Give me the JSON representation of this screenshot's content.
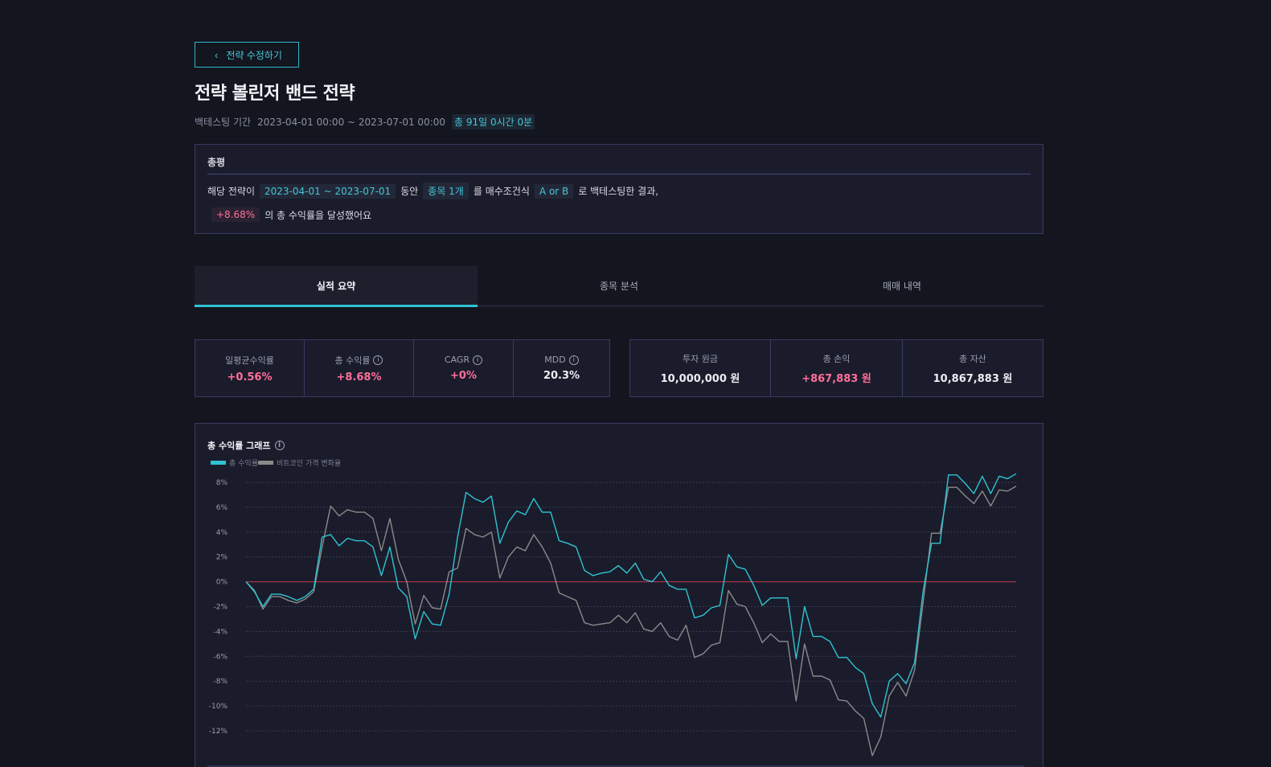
{
  "back_button": {
    "label": "전략 수정하기"
  },
  "title": "전략 볼린저 밴드 전략",
  "period": {
    "label": "백테스팅 기간",
    "range": "2023-04-01 00:00 ~ 2023-07-01 00:00",
    "total": "총 91일 0시간 0분"
  },
  "summary": {
    "heading": "총평",
    "t1": "해당 전략이",
    "range": "2023-04-01 ~ 2023-07-01",
    "t2": "동안",
    "count": "종목 1개",
    "t3": "를 매수조건식",
    "condition": "A or B",
    "t4": "로 백테스팅한 결과,",
    "return": "+8.68%",
    "t5": "의 총 수익률을 달성했어요"
  },
  "tabs": [
    {
      "label": "실적 요약",
      "active": true
    },
    {
      "label": "종목 분석",
      "active": false
    },
    {
      "label": "매매 내역",
      "active": false
    }
  ],
  "stats_left": [
    {
      "label": "일평균수익률",
      "value": "+0.56%",
      "color": "pink",
      "info": false
    },
    {
      "label": "총 수익률",
      "value": "+8.68%",
      "color": "pink",
      "info": true
    },
    {
      "label": "CAGR",
      "value": "+0%",
      "color": "pink",
      "info": true
    },
    {
      "label": "MDD",
      "value": "20.3%",
      "color": "white",
      "info": true
    }
  ],
  "stats_right": [
    {
      "label": "투자 원금",
      "value": "10,000,000 원",
      "color": "white"
    },
    {
      "label": "총 손익",
      "value": "+867,883 원",
      "color": "pink"
    },
    {
      "label": "총 자산",
      "value": "10,867,883 원",
      "color": "white"
    }
  ],
  "chart": {
    "title": "총 수익률 그래프",
    "legend": [
      "총 수익률",
      "비트코인 가격 변화율"
    ]
  },
  "colors": {
    "accent": "#2fc3d2",
    "pink": "#ff6f9a",
    "benchmark": "#8a8a8a",
    "zero_line": "#c0394f"
  },
  "chart_data": {
    "type": "line",
    "yticks": [
      "8%",
      "6%",
      "4%",
      "2%",
      "0%",
      "-2%",
      "-4%",
      "-6%",
      "-8%",
      "-10%",
      "-12%"
    ],
    "ylim": [
      -12,
      8
    ],
    "series": [
      {
        "name": "총 수익률",
        "values": [
          0,
          -0.8,
          -2,
          -1,
          -1,
          -1.2,
          -1.5,
          -1.2,
          -0.6,
          3.6,
          3.8,
          2.9,
          3.5,
          3.3,
          3.3,
          2.8,
          0.5,
          2.8,
          -0.5,
          -1.2,
          -4.6,
          -2.4,
          -3.4,
          -3.5,
          -1,
          3.6,
          7.2,
          6.7,
          6.4,
          6.9,
          3.1,
          4.8,
          5.7,
          5.4,
          6.7,
          5.6,
          5.6,
          3.3,
          3.1,
          2.8,
          0.9,
          0.5,
          0.7,
          0.8,
          1.3,
          0.7,
          1.5,
          0.2,
          0,
          0.8,
          -0.3,
          -0.6,
          -0.6,
          -2.9,
          -2.7,
          -2.1,
          -1.9,
          2.2,
          1.2,
          1,
          -0.3,
          -1.9,
          -1.3,
          -1.3,
          -1.3,
          -6.2,
          -2,
          -4.4,
          -4.4,
          -4.8,
          -6.1,
          -6.1,
          -6.9,
          -7.4,
          -9.8,
          -10.9,
          -8,
          -7.4,
          -8.2,
          -6.5,
          -0.8,
          3.1,
          3.1,
          8.6,
          8.6,
          7.9,
          7.1,
          8.5,
          7.1,
          8.5,
          8.3,
          8.7
        ]
      },
      {
        "name": "비트코인 가격 변화율",
        "values": [
          0,
          -0.7,
          -2.2,
          -1.2,
          -1.2,
          -1.5,
          -1.7,
          -1.4,
          -0.8,
          2.8,
          6.1,
          5.3,
          5.8,
          5.6,
          5.6,
          5.1,
          2.5,
          5.1,
          1.8,
          0,
          -3.4,
          -1.1,
          -2.1,
          -2.2,
          0.8,
          1.1,
          4.3,
          3.8,
          3.6,
          4,
          0.3,
          2,
          2.8,
          2.5,
          3.8,
          2.8,
          1.5,
          -0.9,
          -1.2,
          -1.5,
          -3.3,
          -3.5,
          -3.4,
          -3.3,
          -2.7,
          -3.3,
          -2.5,
          -3.8,
          -4,
          -3.3,
          -4.4,
          -4.7,
          -3.5,
          -6.1,
          -5.8,
          -5.1,
          -4.9,
          -0.7,
          -1.8,
          -2,
          -3.3,
          -4.9,
          -4.2,
          -4.8,
          -4.8,
          -9.6,
          -5,
          -7.6,
          -7.6,
          -7.9,
          -9.5,
          -9.6,
          -10.4,
          -11,
          -14,
          -12.5,
          -9.2,
          -8.1,
          -9.2,
          -7.1,
          -1.7,
          3.9,
          3.9,
          7.6,
          7.6,
          6.9,
          6.3,
          7.3,
          6.1,
          7.4,
          7.3,
          7.7
        ]
      }
    ]
  }
}
